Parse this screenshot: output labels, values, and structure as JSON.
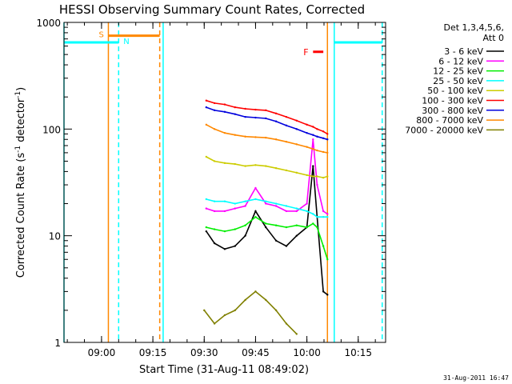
{
  "chart_data": {
    "type": "line",
    "title": "HESSI Observing Summary Count Rates, Corrected",
    "xlabel": "Start Time (31-Aug-11 08:49:02)",
    "ylabel_prefix": "Corrected Count Rate (s",
    "ylabel_sup1": "-1",
    "ylabel_mid": " detector",
    "ylabel_sup2": "-1",
    "ylabel_suffix": ")",
    "yscale": "log",
    "ylim": [
      1,
      1000
    ],
    "xlim": [
      8.8172,
      10.3833
    ],
    "x_ticks": [
      {
        "v": 9.0,
        "label": "09:00"
      },
      {
        "v": 9.25,
        "label": "09:15"
      },
      {
        "v": 9.5,
        "label": "09:30"
      },
      {
        "v": 9.75,
        "label": "09:45"
      },
      {
        "v": 10.0,
        "label": "10:00"
      },
      {
        "v": 10.25,
        "label": "10:15"
      }
    ],
    "y_ticks": [
      {
        "v": 1,
        "label": "1"
      },
      {
        "v": 10,
        "label": "10"
      },
      {
        "v": 100,
        "label": "100"
      },
      {
        "v": 1000,
        "label": "1000"
      }
    ],
    "legend_position": "right",
    "legend_header": [
      "Det 1,3,4,5,6,",
      "Att 0"
    ],
    "series": [
      {
        "name": "3 - 6 keV",
        "color": "#000000",
        "x": [
          9.51,
          9.55,
          9.6,
          9.65,
          9.7,
          9.75,
          9.8,
          9.85,
          9.9,
          9.95,
          10.0,
          10.03,
          10.05,
          10.08,
          10.1
        ],
        "values": [
          11,
          8.5,
          7.5,
          8,
          10,
          17,
          12,
          9,
          8,
          10,
          12,
          45,
          15,
          3,
          2.8
        ]
      },
      {
        "name": "6 - 12 keV",
        "color": "#ff00ff",
        "x": [
          9.51,
          9.55,
          9.6,
          9.65,
          9.7,
          9.75,
          9.8,
          9.85,
          9.9,
          9.95,
          10.0,
          10.03,
          10.05,
          10.08,
          10.1
        ],
        "values": [
          18,
          17,
          17,
          18,
          19,
          28,
          20,
          19,
          17,
          17,
          20,
          80,
          30,
          17,
          16
        ]
      },
      {
        "name": "12 - 25 keV",
        "color": "#00ee00",
        "x": [
          9.51,
          9.55,
          9.6,
          9.65,
          9.7,
          9.75,
          9.8,
          9.85,
          9.9,
          9.95,
          10.0,
          10.03,
          10.05,
          10.08,
          10.1
        ],
        "values": [
          12,
          11.5,
          11,
          11.5,
          12.5,
          15,
          13,
          12.5,
          12,
          12.5,
          12,
          13,
          12,
          8,
          6
        ]
      },
      {
        "name": "25 - 50 keV",
        "color": "#00ffff",
        "x": [
          9.51,
          9.55,
          9.6,
          9.65,
          9.7,
          9.75,
          9.8,
          9.85,
          9.9,
          9.95,
          10.0,
          10.03,
          10.05,
          10.08,
          10.1
        ],
        "values": [
          22,
          21,
          21,
          20,
          21,
          22,
          21,
          20,
          19,
          18,
          17,
          16,
          15,
          15,
          15
        ]
      },
      {
        "name": "50 - 100 keV",
        "color": "#cccc00",
        "x": [
          9.51,
          9.55,
          9.6,
          9.65,
          9.7,
          9.75,
          9.8,
          9.85,
          9.9,
          9.95,
          10.0,
          10.03,
          10.05,
          10.08,
          10.1
        ],
        "values": [
          55,
          50,
          48,
          47,
          45,
          46,
          45,
          43,
          41,
          39,
          37,
          36,
          36,
          35,
          36
        ]
      },
      {
        "name": "100 - 300 keV",
        "color": "#ff0000",
        "x": [
          9.51,
          9.55,
          9.6,
          9.65,
          9.7,
          9.75,
          9.8,
          9.85,
          9.9,
          9.95,
          10.0,
          10.03,
          10.05,
          10.08,
          10.1
        ],
        "values": [
          185,
          175,
          170,
          160,
          155,
          152,
          150,
          140,
          130,
          120,
          110,
          105,
          100,
          95,
          90
        ]
      },
      {
        "name": "300 - 800 keV",
        "color": "#0000dd",
        "x": [
          9.51,
          9.55,
          9.6,
          9.65,
          9.7,
          9.75,
          9.8,
          9.85,
          9.9,
          9.95,
          10.0,
          10.03,
          10.05,
          10.08,
          10.1
        ],
        "values": [
          160,
          150,
          145,
          138,
          130,
          128,
          126,
          118,
          108,
          100,
          92,
          88,
          85,
          82,
          80
        ]
      },
      {
        "name": "800 - 7000 keV",
        "color": "#ff8800",
        "x": [
          9.51,
          9.55,
          9.6,
          9.65,
          9.7,
          9.75,
          9.8,
          9.85,
          9.9,
          9.95,
          10.0,
          10.03,
          10.05,
          10.08,
          10.1
        ],
        "values": [
          110,
          100,
          92,
          88,
          85,
          84,
          83,
          80,
          76,
          72,
          68,
          65,
          63,
          61,
          60
        ]
      },
      {
        "name": "7000 - 20000 keV",
        "color": "#808000",
        "x": [
          9.5,
          9.55,
          9.6,
          9.65,
          9.7,
          9.75,
          9.8,
          9.85,
          9.9,
          9.95
        ],
        "values": [
          2,
          1.5,
          1.8,
          2,
          2.5,
          3,
          2.5,
          2,
          1.5,
          1.2
        ]
      }
    ],
    "attenuator_bar": {
      "label": "S",
      "color": "#ff8800",
      "x_start": 9.0333,
      "x_end": 9.2833,
      "y": 750
    },
    "night_bars": [
      {
        "label": "N",
        "color": "#00ffff",
        "x_start": 8.8172,
        "x_end": 9.0833,
        "y": 650
      },
      {
        "label": "",
        "color": "#00ffff",
        "x_start": 10.1333,
        "x_end": 10.3667,
        "y": 650
      }
    ],
    "flare_marker": {
      "label": "F",
      "color": "#ff0000",
      "x_start": 10.03,
      "x_end": 10.08,
      "y": 530
    },
    "vertical_lines": [
      {
        "x": 8.8172,
        "color": "#00ffff",
        "style": "solid"
      },
      {
        "x": 9.0333,
        "color": "#ff8800",
        "style": "solid"
      },
      {
        "x": 9.0833,
        "color": "#00ffff",
        "style": "dashed"
      },
      {
        "x": 9.2833,
        "color": "#ff8800",
        "style": "dashed"
      },
      {
        "x": 9.3,
        "color": "#00ffff",
        "style": "solid"
      },
      {
        "x": 10.1333,
        "color": "#00ffff",
        "style": "solid"
      },
      {
        "x": 10.1,
        "color": "#ff8800",
        "style": "solid"
      },
      {
        "x": 10.3667,
        "color": "#00ffff",
        "style": "dashed"
      }
    ],
    "footer": "31-Aug-2011 16:47"
  }
}
